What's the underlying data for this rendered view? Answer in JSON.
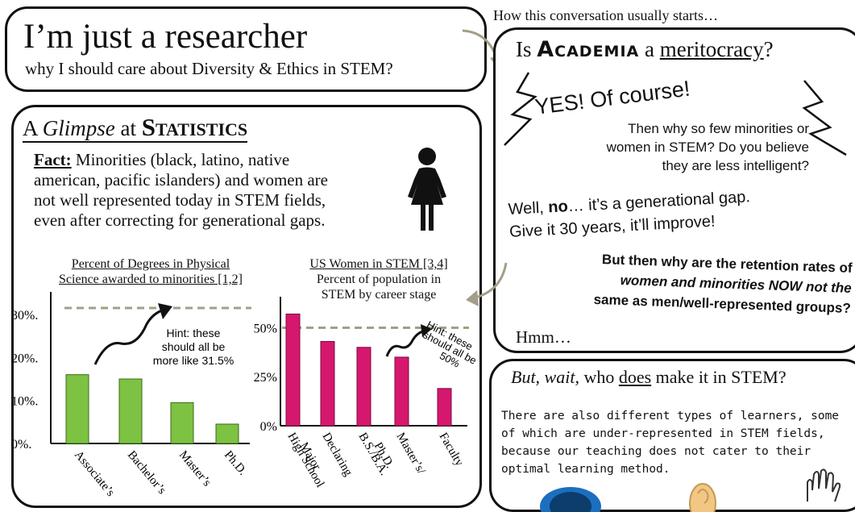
{
  "title_box": {
    "title": "I’m just a researcher",
    "subtitle": "why I should care about Diversity & Ethics in STEM?"
  },
  "convo_intro": "How this conversation usually starts…",
  "convo": {
    "q_pre": "Is ",
    "q_academia": "Academia",
    "q_a": " a ",
    "q_meritocracy": "meritocracy",
    "q_mark": "?",
    "yes": "YES! Of course!",
    "reply1": [
      "Then why so few minorities or",
      "women in STEM? Do you believe",
      "they are less intelligent?"
    ],
    "well_pre": "Well, ",
    "well_no": "no",
    "well_post": "… it’s a generational gap.",
    "well_line2": "Give it 30 years, it’ll improve!",
    "reply2": [
      "But then why are the retention rates of",
      "women and minorities NOW not the",
      "same as men/well-represented groups?"
    ],
    "hmm": "Hmm…"
  },
  "stats": {
    "heading_a": "A ",
    "heading_glimpse": "Glimpse",
    "heading_at": " at ",
    "heading_statistics": "Statistics",
    "fact_label": "Fact:",
    "fact_lines": [
      " Minorities (black, latino, native",
      "american, pacific islanders) and women are",
      "not well represented today in STEM fields,",
      "even after correcting for generational gaps."
    ],
    "person_icon": "woman-icon"
  },
  "wait_box": {
    "heading_but": "But, wait,",
    "heading_who": " who ",
    "heading_does": "does",
    "heading_rest": " make it in STEM?",
    "body": [
      "There are also different types of learners, some",
      "of which are under-represented in STEM fields,",
      "because our teaching does not cater to their",
      "optimal learning method."
    ]
  },
  "chart_data": [
    {
      "type": "bar",
      "title": "Percent of Degrees in Physical Science awarded to minorities [1,2]",
      "title_lines": [
        "Percent of Degrees in Physical",
        "Science awarded to minorities [1,2]"
      ],
      "categories": [
        "Associate’s",
        "Bachelor’s",
        "Master’s",
        "Ph.D."
      ],
      "values": [
        16,
        15,
        9.5,
        4.5
      ],
      "ylim": [
        0,
        33
      ],
      "yticks": [
        "30%.",
        "20%.",
        "10%.",
        "0%."
      ],
      "ytick_values": [
        30,
        20,
        10,
        0
      ],
      "reference_line": 31.5,
      "annotation": [
        "Hint: these",
        "should all be",
        "more like 31.5%"
      ],
      "color": "#7dc242"
    },
    {
      "type": "bar",
      "title": "US Women in STEM [3,4]",
      "subtitle_lines": [
        "Percent of population in",
        "STEM by career stage"
      ],
      "categories": [
        "High School",
        "Declaring Major",
        "B.S./B.A.",
        "Master’s/ Ph.D.",
        "Faculty"
      ],
      "category_lines": [
        [
          "High School"
        ],
        [
          "Declaring",
          "Major"
        ],
        [
          "B.S./B.A."
        ],
        [
          "Master’s/",
          "Ph.D."
        ],
        [
          "Faculty"
        ]
      ],
      "values": [
        57,
        43,
        40,
        35,
        19
      ],
      "ylim": [
        0,
        65
      ],
      "yticks": [
        "50%",
        "25%",
        "0%"
      ],
      "ytick_values": [
        50,
        25,
        0
      ],
      "reference_line": 50,
      "annotation": [
        "Hint: these",
        "should all be",
        "50%"
      ],
      "color": "#d6176e"
    }
  ]
}
